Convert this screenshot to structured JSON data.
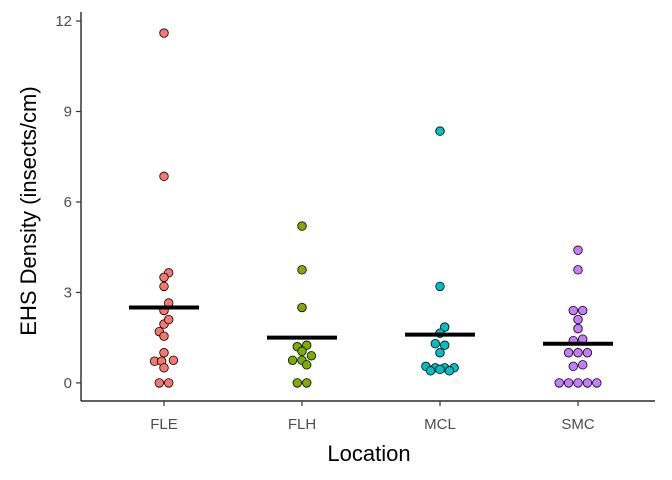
{
  "chart_data": {
    "type": "scatter",
    "xlabel": "Location",
    "ylabel": "EHS Density (insects/cm)",
    "categories": [
      "FLE",
      "FLH",
      "MCL",
      "SMC"
    ],
    "ylim": [
      -0.6,
      12.3
    ],
    "yticks": [
      0,
      3,
      6,
      9,
      12
    ],
    "grid": false,
    "legend": "none",
    "series": [
      {
        "category": "FLE",
        "color": "#F8766D",
        "mean": 2.5,
        "points": [
          {
            "offset": 0,
            "y": 11.6
          },
          {
            "offset": 0,
            "y": 6.85
          },
          {
            "offset": 0.5,
            "y": 3.65
          },
          {
            "offset": 0,
            "y": 3.5
          },
          {
            "offset": 0,
            "y": 3.2
          },
          {
            "offset": 0.5,
            "y": 2.65
          },
          {
            "offset": 0,
            "y": 2.4
          },
          {
            "offset": 0,
            "y": 1.95
          },
          {
            "offset": 0.5,
            "y": 2.1
          },
          {
            "offset": -0.5,
            "y": 1.7
          },
          {
            "offset": 0,
            "y": 1.55
          },
          {
            "offset": 0,
            "y": 1.0
          },
          {
            "offset": -1,
            "y": 0.72
          },
          {
            "offset": -0.25,
            "y": 0.72
          },
          {
            "offset": 1,
            "y": 0.75
          },
          {
            "offset": 0,
            "y": 0.5
          },
          {
            "offset": -0.5,
            "y": 0.0
          },
          {
            "offset": 0.5,
            "y": 0.0
          }
        ]
      },
      {
        "category": "FLH",
        "color": "#7CAE00",
        "mean": 1.5,
        "points": [
          {
            "offset": 0,
            "y": 5.2
          },
          {
            "offset": 0,
            "y": 3.75
          },
          {
            "offset": 0,
            "y": 2.5
          },
          {
            "offset": -0.5,
            "y": 1.2
          },
          {
            "offset": 0.5,
            "y": 1.25
          },
          {
            "offset": 0,
            "y": 1.05
          },
          {
            "offset": 1,
            "y": 0.9
          },
          {
            "offset": -1,
            "y": 0.75
          },
          {
            "offset": 0,
            "y": 0.75
          },
          {
            "offset": 0.5,
            "y": 0.6
          },
          {
            "offset": -0.5,
            "y": 0.0
          },
          {
            "offset": 0.5,
            "y": 0.0
          }
        ]
      },
      {
        "category": "MCL",
        "color": "#00BFC4",
        "mean": 1.6,
        "points": [
          {
            "offset": 0,
            "y": 8.35
          },
          {
            "offset": 0,
            "y": 3.2
          },
          {
            "offset": 0.5,
            "y": 1.85
          },
          {
            "offset": 0,
            "y": 1.65
          },
          {
            "offset": -0.5,
            "y": 1.3
          },
          {
            "offset": 0.5,
            "y": 1.25
          },
          {
            "offset": 0,
            "y": 1.0
          },
          {
            "offset": -1.5,
            "y": 0.55
          },
          {
            "offset": -0.5,
            "y": 0.5
          },
          {
            "offset": 0.5,
            "y": 0.5
          },
          {
            "offset": 1.5,
            "y": 0.5
          },
          {
            "offset": -1,
            "y": 0.4
          },
          {
            "offset": 0,
            "y": 0.45
          },
          {
            "offset": 1,
            "y": 0.4
          }
        ]
      },
      {
        "category": "SMC",
        "color": "#C77CFF",
        "mean": 1.3,
        "points": [
          {
            "offset": 0,
            "y": 4.4
          },
          {
            "offset": 0,
            "y": 3.75
          },
          {
            "offset": -0.5,
            "y": 2.4
          },
          {
            "offset": 0.5,
            "y": 2.4
          },
          {
            "offset": 0,
            "y": 2.1
          },
          {
            "offset": 0,
            "y": 1.8
          },
          {
            "offset": -0.5,
            "y": 1.4
          },
          {
            "offset": 0.5,
            "y": 1.45
          },
          {
            "offset": -1,
            "y": 1.0
          },
          {
            "offset": 0,
            "y": 1.0
          },
          {
            "offset": 1,
            "y": 1.0
          },
          {
            "offset": -0.5,
            "y": 0.55
          },
          {
            "offset": 0.5,
            "y": 0.6
          },
          {
            "offset": -2,
            "y": 0.0
          },
          {
            "offset": -1,
            "y": 0.0
          },
          {
            "offset": 0,
            "y": 0.0
          },
          {
            "offset": 1,
            "y": 0.0
          },
          {
            "offset": 2,
            "y": 0.0
          }
        ]
      }
    ]
  }
}
